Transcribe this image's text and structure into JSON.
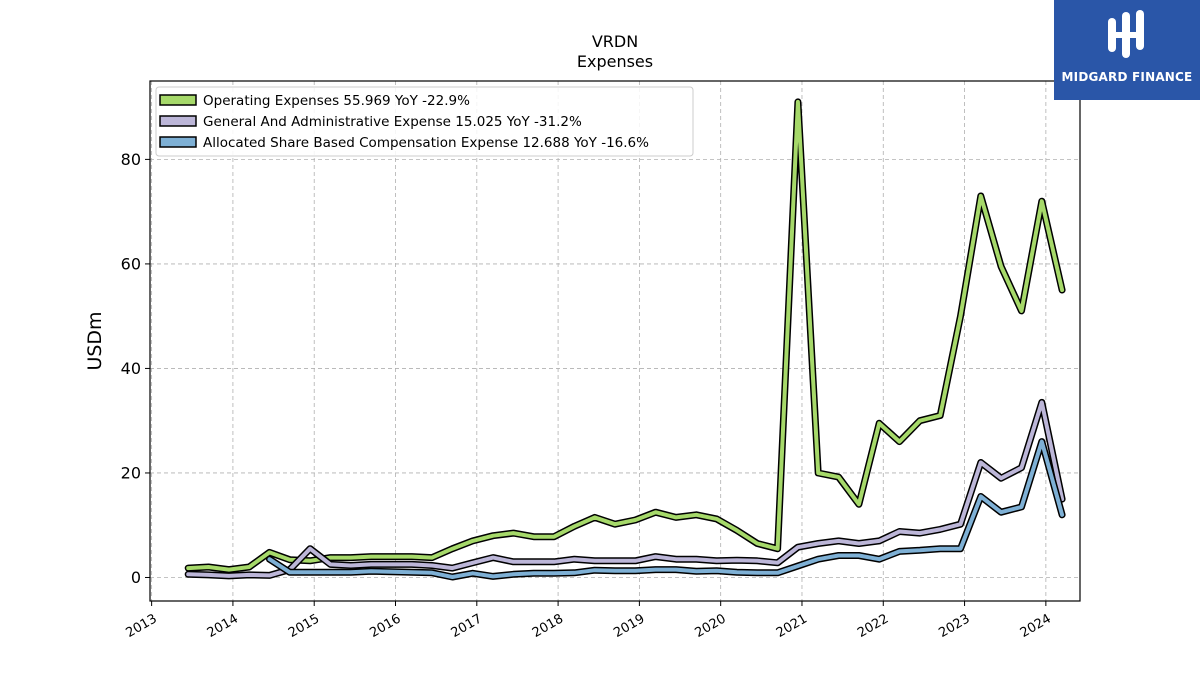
{
  "brand": {
    "name": "MIDGARD FINANCE",
    "bg_color": "#2a56a8"
  },
  "chart_data": {
    "type": "line",
    "title": "VRDN",
    "subtitle": "Expenses",
    "ylabel": "USDm",
    "xlabel": "",
    "xlim": [
      2012.98,
      2024.42
    ],
    "ylim": [
      -4.5,
      95
    ],
    "yticks": [
      0,
      20,
      40,
      60,
      80
    ],
    "xticks": [
      "2013",
      "2014",
      "2015",
      "2016",
      "2017",
      "2018",
      "2019",
      "2020",
      "2021",
      "2022",
      "2023",
      "2024"
    ],
    "grid": true,
    "legend_position": "top-left",
    "series": [
      {
        "name": "Operating Expenses",
        "legend": "Operating Expenses  55.969 YoY -22.9%",
        "color": "#a6d96a",
        "x": [
          2013.45,
          2013.7,
          2013.95,
          2014.2,
          2014.45,
          2014.7,
          2014.95,
          2015.2,
          2015.45,
          2015.7,
          2015.95,
          2016.2,
          2016.45,
          2016.7,
          2016.95,
          2017.2,
          2017.45,
          2017.7,
          2017.95,
          2018.2,
          2018.45,
          2018.7,
          2018.95,
          2019.2,
          2019.45,
          2019.7,
          2019.95,
          2020.2,
          2020.45,
          2020.7,
          2020.95,
          2021.2,
          2021.45,
          2021.7,
          2021.95,
          2022.2,
          2022.45,
          2022.7,
          2022.95,
          2023.2,
          2023.45,
          2023.7,
          2023.95,
          2024.2
        ],
        "values": [
          1.8,
          2.0,
          1.5,
          2.0,
          4.8,
          3.4,
          3.2,
          3.8,
          3.8,
          4.0,
          4.0,
          4.0,
          3.8,
          5.5,
          7.0,
          8.0,
          8.5,
          7.8,
          7.8,
          9.8,
          11.5,
          10.2,
          11.0,
          12.5,
          11.5,
          12.0,
          11.2,
          9.0,
          6.5,
          5.5,
          91.0,
          20.0,
          19.2,
          14.0,
          29.5,
          26.0,
          30.0,
          31.0,
          50.0,
          73.0,
          59.5,
          51.0,
          72.0,
          55.0
        ]
      },
      {
        "name": "General And Administrative Expense",
        "legend": "General And Administrative Expense  15.025 YoY -31.2%",
        "color": "#bcb6d8",
        "x": [
          2013.45,
          2013.7,
          2013.95,
          2014.2,
          2014.45,
          2014.7,
          2014.95,
          2015.2,
          2015.45,
          2015.7,
          2015.95,
          2016.2,
          2016.45,
          2016.7,
          2016.95,
          2017.2,
          2017.45,
          2017.7,
          2017.95,
          2018.2,
          2018.45,
          2018.7,
          2018.95,
          2019.2,
          2019.45,
          2019.7,
          2019.95,
          2020.2,
          2020.45,
          2020.7,
          2020.95,
          2021.2,
          2021.45,
          2021.7,
          2021.95,
          2022.2,
          2022.45,
          2022.7,
          2022.95,
          2023.2,
          2023.45,
          2023.7,
          2023.95,
          2024.2
        ],
        "values": [
          0.6,
          0.5,
          0.3,
          0.5,
          0.4,
          1.5,
          5.5,
          2.5,
          2.3,
          2.5,
          2.5,
          2.5,
          2.3,
          1.8,
          2.8,
          3.8,
          3.0,
          3.0,
          3.0,
          3.5,
          3.2,
          3.2,
          3.2,
          4.0,
          3.5,
          3.5,
          3.2,
          3.3,
          3.2,
          2.8,
          5.8,
          6.5,
          7.0,
          6.5,
          7.0,
          8.8,
          8.5,
          9.2,
          10.2,
          22.0,
          19.0,
          21.0,
          33.5,
          15.0
        ]
      },
      {
        "name": "Allocated Share Based Compensation Expense",
        "legend": "Allocated Share Based Compensation Expense  12.688 YoY -16.6%",
        "color": "#7eb0d5",
        "x": [
          2014.45,
          2014.7,
          2014.95,
          2015.2,
          2015.45,
          2015.7,
          2015.95,
          2016.2,
          2016.45,
          2016.7,
          2016.95,
          2017.2,
          2017.45,
          2017.7,
          2017.95,
          2018.2,
          2018.45,
          2018.7,
          2018.95,
          2019.2,
          2019.45,
          2019.7,
          2019.95,
          2020.2,
          2020.45,
          2020.7,
          2020.95,
          2021.2,
          2021.45,
          2021.7,
          2021.95,
          2022.2,
          2022.45,
          2022.7,
          2022.95,
          2023.2,
          2023.45,
          2023.7,
          2023.95,
          2024.2
        ],
        "values": [
          3.5,
          1.0,
          1.0,
          1.0,
          1.0,
          1.2,
          1.1,
          1.0,
          0.9,
          0.1,
          0.8,
          0.2,
          0.6,
          0.8,
          0.8,
          0.9,
          1.4,
          1.3,
          1.3,
          1.5,
          1.5,
          1.2,
          1.3,
          1.0,
          0.9,
          0.9,
          2.2,
          3.5,
          4.2,
          4.2,
          3.5,
          5.0,
          5.2,
          5.5,
          5.5,
          15.5,
          12.5,
          13.5,
          26.0,
          12.0
        ]
      }
    ]
  }
}
